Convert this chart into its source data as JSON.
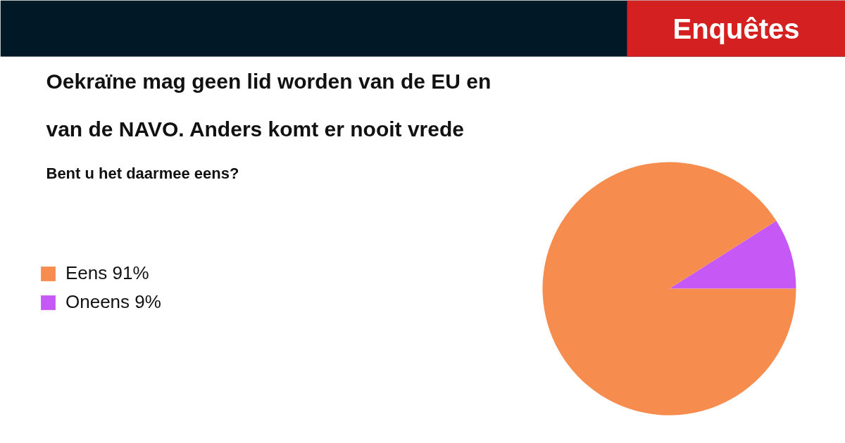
{
  "chart_data": {
    "type": "pie",
    "title": "Oekraïne mag geen lid worden van de EU en van de NAVO. Anders komt er nooit vrede",
    "subtitle": "Bent u het daarmee eens?",
    "annotations": [
      "Enquêtes"
    ],
    "categories": [
      "Eens",
      "Oneens"
    ],
    "values": [
      91,
      9
    ],
    "value_labels": [
      "91%",
      "9%"
    ],
    "colors": [
      "#f68c4e",
      "#c658f5"
    ],
    "legend": "left"
  }
}
